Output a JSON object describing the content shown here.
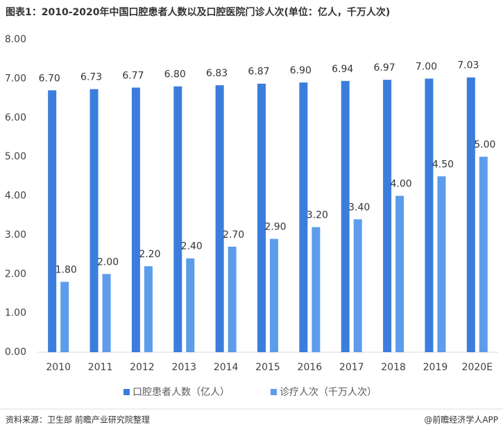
{
  "chart_data": {
    "type": "bar",
    "title": "图表1：2010-2020年中国口腔患者人数以及口腔医院门诊人次(单位：亿人，千万人次)",
    "categories": [
      "2010",
      "2011",
      "2012",
      "2013",
      "2014",
      "2015",
      "2016",
      "2017",
      "2018",
      "2019",
      "2020E"
    ],
    "series": [
      {
        "name": "口腔患者人数（亿人）",
        "color": "#3b7ddd",
        "values": [
          6.7,
          6.73,
          6.77,
          6.8,
          6.83,
          6.87,
          6.9,
          6.94,
          6.97,
          7.0,
          7.03
        ],
        "value_labels": [
          "6.70",
          "6.73",
          "6.77",
          "6.80",
          "6.83",
          "6.87",
          "6.90",
          "6.94",
          "6.97",
          "7.00",
          "7.03"
        ]
      },
      {
        "name": "诊疗人次（千万人次）",
        "color": "#5c9ceb",
        "values": [
          1.8,
          2.0,
          2.2,
          2.4,
          2.7,
          2.9,
          3.2,
          3.4,
          4.0,
          4.5,
          5.0
        ],
        "value_labels": [
          "1.80",
          "2.00",
          "2.20",
          "2.40",
          "2.70",
          "2.90",
          "3.20",
          "3.40",
          "4.00",
          "4.50",
          "5.00"
        ]
      }
    ],
    "ylim": [
      0,
      8
    ],
    "yticks": [
      {
        "value": 0,
        "label": "0.00"
      },
      {
        "value": 1,
        "label": "1.00"
      },
      {
        "value": 2,
        "label": "2.00"
      },
      {
        "value": 3,
        "label": "3.00"
      },
      {
        "value": 4,
        "label": "4.00"
      },
      {
        "value": 5,
        "label": "5.00"
      },
      {
        "value": 6,
        "label": "6.00"
      },
      {
        "value": 7,
        "label": "7.00"
      },
      {
        "value": 8,
        "label": "8.00"
      }
    ],
    "grid": false,
    "legend": "bottom",
    "source": "资料来源：卫生部 前瞻产业研究院整理",
    "credit": "@前瞻经济学人APP"
  }
}
